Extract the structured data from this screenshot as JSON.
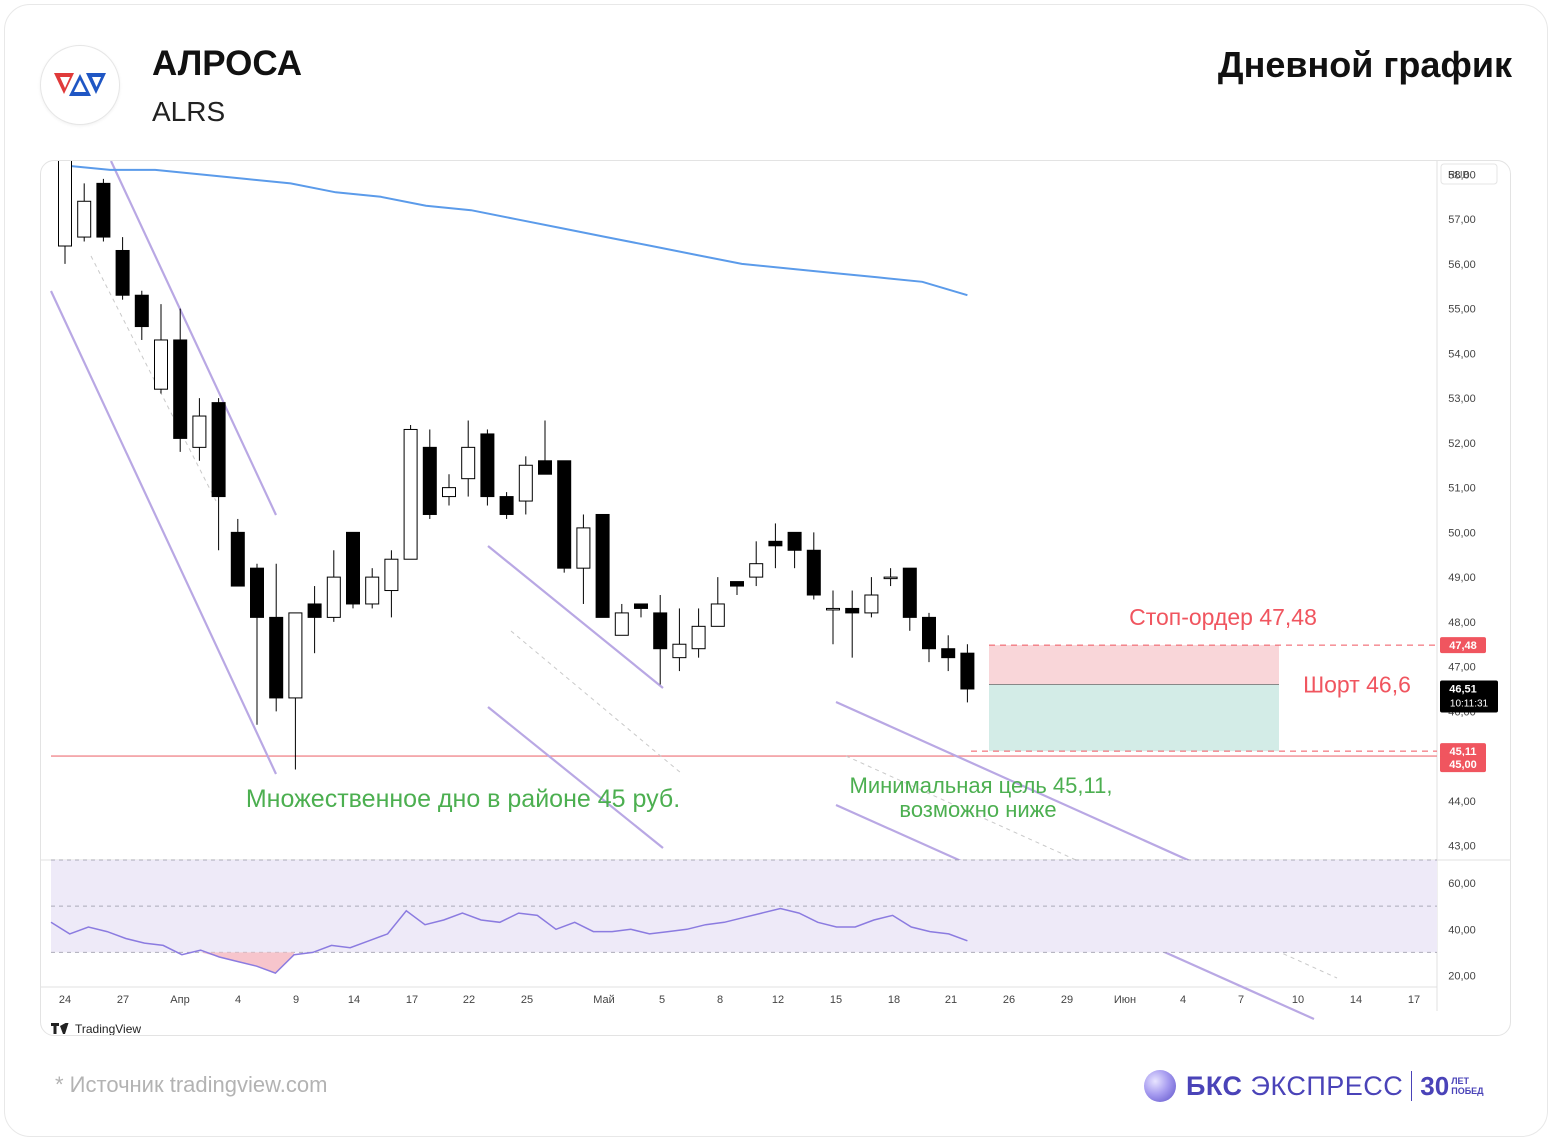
{
  "header": {
    "company": "АЛРОСА",
    "ticker": "ALRS",
    "timeframe": "Дневной график"
  },
  "footer": {
    "source": "*  Источник tradingview.com",
    "brand_bold": "БКС",
    "brand_rest": " ЭКСПРЕСС",
    "brand_num": "30",
    "brand_small_1": "ЛЕТ",
    "brand_small_2": "ПОБЕД"
  },
  "colors": {
    "up": "#ffffff",
    "down": "#000000",
    "ma": "#5b9bea",
    "channel": "#b9a8e4",
    "stop_zone": "#f9d6d9",
    "target_zone": "#d3ece7",
    "support": "#f08a8f",
    "stop_text": "#f0555f",
    "target_text": "#4caf50",
    "rsi_band": "#eeeaf8",
    "rsi_line": "#8b7be0"
  },
  "chart_data": {
    "type": "candlestick",
    "currency": "RUB",
    "ylim": [
      42.7,
      58.3
    ],
    "yticks": [
      "58,00",
      "57,00",
      "56,00",
      "55,00",
      "54,00",
      "53,00",
      "52,00",
      "51,00",
      "50,00",
      "49,00",
      "48,00",
      "47,00",
      "46,00",
      "45,00",
      "44,00",
      "43,00"
    ],
    "ytick_values": [
      58,
      57,
      56,
      55,
      54,
      53,
      52,
      51,
      50,
      49,
      48,
      47,
      46,
      45,
      44,
      43
    ],
    "xticks": [
      "24",
      "27",
      "Апр",
      "4",
      "9",
      "14",
      "17",
      "22",
      "25",
      "Май",
      "5",
      "8",
      "12",
      "15",
      "18",
      "21",
      "26",
      "29",
      "Июн",
      "4",
      "7",
      "10",
      "14",
      "17"
    ],
    "candles": [
      {
        "o": 56.4,
        "h": 59.5,
        "l": 56.0,
        "c": 59.2
      },
      {
        "o": 56.6,
        "h": 57.8,
        "l": 56.5,
        "c": 57.4
      },
      {
        "o": 57.8,
        "h": 57.9,
        "l": 56.5,
        "c": 56.6
      },
      {
        "o": 56.3,
        "h": 56.6,
        "l": 55.2,
        "c": 55.3
      },
      {
        "o": 55.3,
        "h": 55.4,
        "l": 54.3,
        "c": 54.6
      },
      {
        "o": 53.2,
        "h": 55.1,
        "l": 53.1,
        "c": 54.3
      },
      {
        "o": 54.3,
        "h": 55.0,
        "l": 51.8,
        "c": 52.1
      },
      {
        "o": 51.9,
        "h": 53.0,
        "l": 51.6,
        "c": 52.6
      },
      {
        "o": 52.9,
        "h": 53.0,
        "l": 49.6,
        "c": 50.8
      },
      {
        "o": 50.0,
        "h": 50.3,
        "l": 48.8,
        "c": 48.8
      },
      {
        "o": 49.2,
        "h": 49.3,
        "l": 45.7,
        "c": 48.1
      },
      {
        "o": 48.1,
        "h": 49.3,
        "l": 46.0,
        "c": 46.3
      },
      {
        "o": 46.3,
        "h": 48.2,
        "l": 44.7,
        "c": 48.2
      },
      {
        "o": 48.4,
        "h": 48.8,
        "l": 47.3,
        "c": 48.1
      },
      {
        "o": 48.1,
        "h": 49.6,
        "l": 48.0,
        "c": 49.0
      },
      {
        "o": 50.0,
        "h": 50.0,
        "l": 48.3,
        "c": 48.4
      },
      {
        "o": 48.4,
        "h": 49.2,
        "l": 48.3,
        "c": 49.0
      },
      {
        "o": 48.7,
        "h": 49.6,
        "l": 48.1,
        "c": 49.4
      },
      {
        "o": 49.4,
        "h": 52.4,
        "l": 49.4,
        "c": 52.3
      },
      {
        "o": 51.9,
        "h": 52.3,
        "l": 50.3,
        "c": 50.4
      },
      {
        "o": 50.8,
        "h": 51.3,
        "l": 50.6,
        "c": 51.0
      },
      {
        "o": 51.2,
        "h": 52.5,
        "l": 50.8,
        "c": 51.9
      },
      {
        "o": 52.2,
        "h": 52.3,
        "l": 50.6,
        "c": 50.8
      },
      {
        "o": 50.8,
        "h": 50.9,
        "l": 50.3,
        "c": 50.4
      },
      {
        "o": 50.7,
        "h": 51.7,
        "l": 50.4,
        "c": 51.5
      },
      {
        "o": 51.6,
        "h": 52.5,
        "l": 51.3,
        "c": 51.3
      },
      {
        "o": 51.6,
        "h": 51.6,
        "l": 49.1,
        "c": 49.2
      },
      {
        "o": 49.2,
        "h": 50.4,
        "l": 48.4,
        "c": 50.1
      },
      {
        "o": 50.4,
        "h": 50.4,
        "l": 48.1,
        "c": 48.1
      },
      {
        "o": 47.7,
        "h": 48.4,
        "l": 47.7,
        "c": 48.2
      },
      {
        "o": 48.4,
        "h": 48.4,
        "l": 48.1,
        "c": 48.3
      },
      {
        "o": 48.2,
        "h": 48.6,
        "l": 46.6,
        "c": 47.4
      },
      {
        "o": 47.2,
        "h": 48.3,
        "l": 46.9,
        "c": 47.5
      },
      {
        "o": 47.4,
        "h": 48.3,
        "l": 47.2,
        "c": 47.9
      },
      {
        "o": 47.9,
        "h": 49.0,
        "l": 47.9,
        "c": 48.4
      },
      {
        "o": 48.9,
        "h": 48.9,
        "l": 48.6,
        "c": 48.8
      },
      {
        "o": 49.0,
        "h": 49.8,
        "l": 48.8,
        "c": 49.3
      },
      {
        "o": 49.8,
        "h": 50.2,
        "l": 49.2,
        "c": 49.7
      },
      {
        "o": 50.0,
        "h": 50.0,
        "l": 49.2,
        "c": 49.6
      },
      {
        "o": 49.6,
        "h": 50.0,
        "l": 48.5,
        "c": 48.6
      },
      {
        "o": 48.3,
        "h": 48.7,
        "l": 47.5,
        "c": 48.3
      },
      {
        "o": 48.3,
        "h": 48.7,
        "l": 47.2,
        "c": 48.2
      },
      {
        "o": 48.2,
        "h": 49.0,
        "l": 48.1,
        "c": 48.6
      },
      {
        "o": 49.0,
        "h": 49.2,
        "l": 48.8,
        "c": 49.0
      },
      {
        "o": 49.2,
        "h": 49.2,
        "l": 47.8,
        "c": 48.1
      },
      {
        "o": 48.1,
        "h": 48.2,
        "l": 47.1,
        "c": 47.4
      },
      {
        "o": 47.4,
        "h": 47.7,
        "l": 46.9,
        "c": 47.2
      },
      {
        "o": 47.3,
        "h": 47.5,
        "l": 46.2,
        "c": 46.5
      }
    ],
    "ma200": [
      58.2,
      58.1,
      58.1,
      58.0,
      57.9,
      57.8,
      57.6,
      57.5,
      57.3,
      57.2,
      57.0,
      56.8,
      56.6,
      56.4,
      56.2,
      56.0,
      55.9,
      55.8,
      55.7,
      55.6,
      55.3
    ],
    "last_price": "46,51",
    "countdown": "10:11:31",
    "stop_price": "47,48",
    "target_price": "45,11",
    "support_price": "45,00",
    "stop_value": 47.48,
    "entry_value": 46.6,
    "target_value": 45.11,
    "support_value": 45.0,
    "last_value": 46.51,
    "annotations": {
      "stop": "Стоп-ордер 47,48",
      "short": "Шорт 46,6",
      "target_1": "Минимальная цель 45,11,",
      "target_2": "возможно ниже",
      "bottom": "Множественное дно в районе 45 руб."
    },
    "rsi": {
      "ylim": [
        15,
        70
      ],
      "yticks": [
        "60,00",
        "40,00",
        "20,00"
      ],
      "ytick_values": [
        60,
        40,
        20
      ],
      "upper": 70,
      "middle": 50,
      "lower": 30,
      "values": [
        43,
        38,
        41,
        39,
        36,
        34,
        33,
        29,
        31,
        28,
        26,
        24,
        21,
        29,
        30,
        33,
        32,
        35,
        38,
        48,
        42,
        44,
        47,
        44,
        43,
        47,
        46,
        40,
        43,
        39,
        39,
        40,
        38,
        39,
        40,
        42,
        43,
        45,
        47,
        49,
        47,
        43,
        41,
        41,
        44,
        46,
        41,
        39,
        38,
        35
      ]
    },
    "logo": "TradingView"
  }
}
